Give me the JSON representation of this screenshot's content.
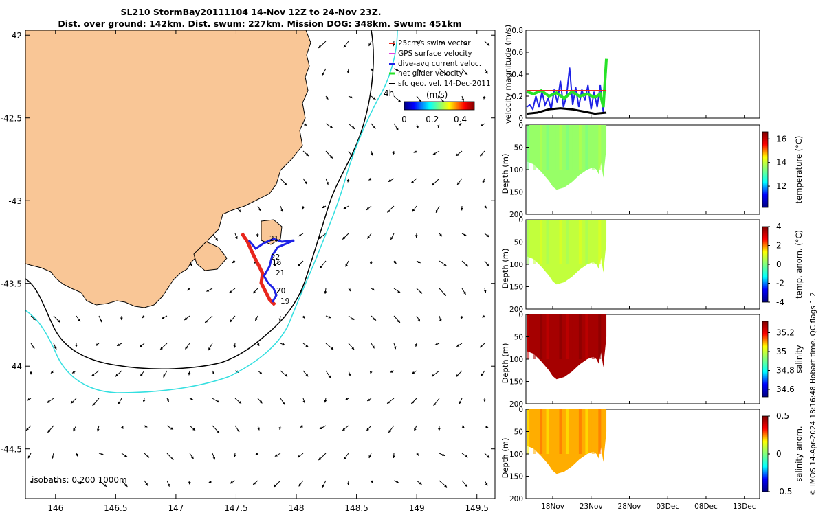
{
  "title": {
    "line1": "SL210 StormBay20111104 14-Nov 12Z to 24-Nov 23Z.",
    "line2": "Dist. over ground: 142km. Dist. swum: 227km. Mission DOG: 348km. Swum: 451km"
  },
  "colors": {
    "land": "#f9c696",
    "isobath_200": "#000000",
    "isobath_1000": "#33dfe0",
    "track": "#e8261c",
    "swim": "#1e22e6",
    "net": "#27e227",
    "geo": "#000000"
  },
  "map": {
    "type": "map",
    "lon_ticks": [
      "146",
      "146.5",
      "147",
      "147.5",
      "148",
      "148.5",
      "149",
      "149.5"
    ],
    "lon_values": [
      146,
      146.5,
      147,
      147.5,
      148,
      148.5,
      149,
      149.5
    ],
    "lat_ticks": [
      "-42",
      "-42.5",
      "-43",
      "-43.5",
      "-44",
      "-44.5"
    ],
    "lat_values": [
      -42,
      -42.5,
      -43,
      -43.5,
      -44,
      -44.5
    ],
    "xlim": [
      145.75,
      149.65
    ],
    "ylim": [
      -44.8,
      -41.97
    ],
    "isobaths_label": "isobaths: 0   200  1000m",
    "legend": [
      {
        "label": "25cm/s swim vector",
        "color": "#e8261c"
      },
      {
        "label": "GPS surface velocity",
        "color": "#e040e0"
      },
      {
        "label": "dive-avg current veloc.",
        "color": "#1e22e6"
      },
      {
        "label": "net glider velocity",
        "color": "#27e227"
      },
      {
        "label": "sfc geo. vel. 14-Dec-2011",
        "color": "#000000"
      }
    ],
    "timestep_label": "4h",
    "colorbar_title": "(m/s)",
    "colorbar_ticks": [
      "0",
      "0.2",
      "0.4"
    ],
    "colorbar_values": [
      0,
      0.2,
      0.4
    ],
    "colorbar_range": [
      0,
      0.5
    ],
    "track_labels": [
      "21",
      "22",
      "16",
      "21",
      "20",
      "19"
    ]
  },
  "chart_data": {
    "type": "line",
    "x_ticks": [
      "18Nov",
      "23Nov",
      "28Nov",
      "03Dec",
      "08Dec",
      "13Dec"
    ],
    "x_values": [
      18,
      23,
      28,
      33,
      38,
      43
    ],
    "xlim": [
      14.5,
      45
    ],
    "velocity": {
      "ylabel": "velocity magnitude (m/s)",
      "yticks": [
        "0",
        "0.2",
        "0.4",
        "0.6",
        "0.8"
      ],
      "ylim": [
        0,
        0.8
      ],
      "series": [
        {
          "name": "dive-avg current veloc.",
          "color": "#1e22e6",
          "x": [
            14.6,
            15.0,
            15.4,
            15.8,
            16.2,
            16.6,
            17.0,
            17.4,
            17.8,
            18.2,
            18.6,
            19.0,
            19.4,
            19.8,
            20.2,
            20.6,
            21.0,
            21.4,
            21.8,
            22.2,
            22.6,
            23.0,
            23.4,
            23.8,
            24.2,
            24.6,
            25.0
          ],
          "y": [
            0.1,
            0.12,
            0.08,
            0.2,
            0.1,
            0.24,
            0.12,
            0.18,
            0.08,
            0.26,
            0.14,
            0.34,
            0.1,
            0.2,
            0.46,
            0.12,
            0.28,
            0.1,
            0.26,
            0.16,
            0.3,
            0.08,
            0.24,
            0.1,
            0.3,
            0.05,
            0.46
          ]
        },
        {
          "name": "net glider velocity",
          "color": "#27e227",
          "x": [
            14.6,
            15.5,
            16.5,
            17.5,
            18.5,
            19.5,
            20.5,
            21.5,
            22.5,
            23.5,
            24.2,
            24.6,
            25.0
          ],
          "y": [
            0.24,
            0.22,
            0.25,
            0.2,
            0.23,
            0.18,
            0.24,
            0.2,
            0.22,
            0.19,
            0.22,
            0.1,
            0.54
          ]
        },
        {
          "name": "25cm/s swim vector",
          "color": "#e8261c",
          "x": [
            14.6,
            25.0
          ],
          "y": [
            0.25,
            0.25
          ]
        },
        {
          "name": "sfc geo. vel.",
          "color": "#000000",
          "x": [
            14.6,
            16,
            17.5,
            19,
            20.5,
            22,
            23.5,
            25.0
          ],
          "y": [
            0.04,
            0.05,
            0.08,
            0.09,
            0.08,
            0.06,
            0.04,
            0.05
          ]
        }
      ]
    },
    "sections": [
      {
        "name": "temperature",
        "cb_label": "temperature (°C)",
        "cb_ticks": [
          "12",
          "14",
          "16"
        ],
        "cb_values": [
          12,
          14,
          16
        ],
        "cb_range": [
          10.2,
          16.6
        ],
        "fill_value": 13.6
      },
      {
        "name": "temp-anom",
        "cb_label": "temp. anom. (°C)",
        "cb_ticks": [
          "-4",
          "-2",
          "0",
          "2",
          "4"
        ],
        "cb_values": [
          -4,
          -2,
          0,
          2,
          4
        ],
        "cb_range": [
          -4,
          4
        ],
        "fill_value": 0.7
      },
      {
        "name": "salinity",
        "cb_label": "salinity",
        "cb_ticks": [
          "34.6",
          "34.8",
          "35",
          "35.2"
        ],
        "cb_values": [
          34.6,
          34.8,
          35,
          35.2
        ],
        "cb_range": [
          34.52,
          35.32
        ],
        "fill_value": 35.28
      },
      {
        "name": "salinity-anom",
        "cb_label": "salinity anom.",
        "cb_ticks": [
          "-0.5",
          "0",
          "0.5"
        ],
        "cb_values": [
          -0.5,
          0,
          0.5
        ],
        "cb_range": [
          -0.5,
          0.5
        ],
        "fill_value": 0.22
      }
    ],
    "depth_ylabel": "Depth (m)",
    "depth_ticks": [
      "0",
      "50",
      "100",
      "150",
      "200"
    ],
    "depth_values": [
      0,
      50,
      100,
      150,
      200
    ],
    "depth_ylim": [
      0,
      200
    ],
    "profile_bottom": {
      "x": [
        14.6,
        15.5,
        16.5,
        17.5,
        18.0,
        18.5,
        19.5,
        20.5,
        21.5,
        22.5,
        23.3,
        23.7,
        24.0,
        24.3,
        24.6,
        25.0
      ],
      "depth": [
        82,
        88,
        105,
        125,
        138,
        145,
        140,
        128,
        112,
        100,
        95,
        100,
        110,
        85,
        118,
        50
      ]
    }
  },
  "footer": "© IMOS 14-Apr-2024 18:16:48 Hobart time. QC flags 1  2"
}
